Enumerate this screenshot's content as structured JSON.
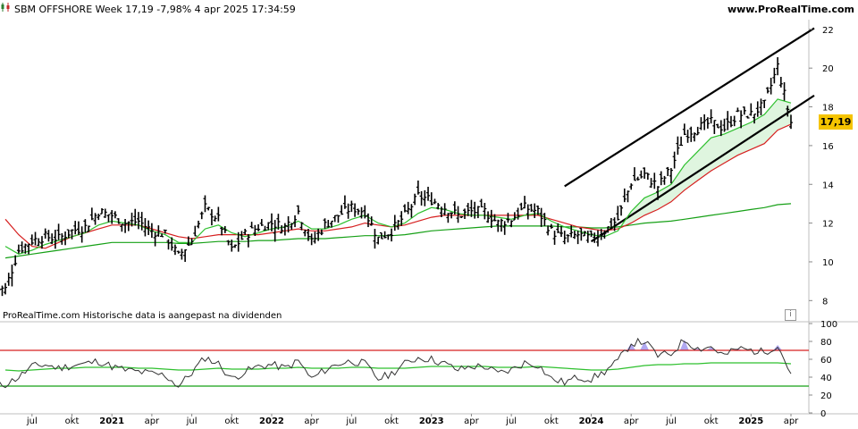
{
  "header": {
    "title": "SBM OFFSHORE Week 17,19 -7,98% 4 apr 2025 17:34:59",
    "site": "www.ProRealTime.com"
  },
  "footnote": "ProRealTime.com  Historische data is aangepast na dividenden",
  "info_icon": "i",
  "price_tag": "17,19",
  "colors": {
    "bars": "#000000",
    "ma_short": "#2ec02e",
    "ma_mid": "#d62020",
    "ma_long": "#16a016",
    "channel_fill": "#dff5df",
    "price_tag": "#f5c400",
    "rsi_line": "#333333",
    "rsi_ma": "#2ec02e",
    "rsi_upper": "#d62020",
    "rsi_lower": "#16a016",
    "rsi_overbought_fill": "#b0a8f0"
  },
  "chart_data": [
    {
      "type": "bar",
      "title": "SBM OFFSHORE Week 17,19 -7,98% 4 apr 2025 17:34:59",
      "ylim": [
        7,
        22.5
      ],
      "yticks": [
        8,
        10,
        12,
        14,
        16,
        18,
        20,
        22
      ],
      "x_labels": [
        "jul",
        "okt",
        "2021",
        "apr",
        "jul",
        "okt",
        "2022",
        "apr",
        "jul",
        "okt",
        "2023",
        "apr",
        "jul",
        "okt",
        "2024",
        "apr",
        "jul",
        "okt",
        "2025",
        "apr"
      ],
      "x_label_years": [
        "2021",
        "2022",
        "2023",
        "2024",
        "2025"
      ],
      "x_range": [
        "2020-06",
        "2025-04"
      ],
      "last_close": 17.19,
      "last_change_pct": -7.98,
      "series": [
        {
          "kind": "ohlc",
          "x": [
            "2020-05",
            "2020-06",
            "2020-07",
            "2020-08",
            "2020-09",
            "2020-10",
            "2020-11",
            "2020-12",
            "2021-01",
            "2021-02",
            "2021-03",
            "2021-04",
            "2021-05",
            "2021-06",
            "2021-07",
            "2021-08",
            "2021-09",
            "2021-10",
            "2021-11",
            "2021-12",
            "2022-01",
            "2022-02",
            "2022-03",
            "2022-04",
            "2022-05",
            "2022-06",
            "2022-07",
            "2022-08",
            "2022-09",
            "2022-10",
            "2022-11",
            "2022-12",
            "2023-01",
            "2023-02",
            "2023-03",
            "2023-04",
            "2023-05",
            "2023-06",
            "2023-07",
            "2023-08",
            "2023-09",
            "2023-10",
            "2023-11",
            "2023-12",
            "2024-01",
            "2024-02",
            "2024-03",
            "2024-04",
            "2024-05",
            "2024-06",
            "2024-07",
            "2024-08",
            "2024-09",
            "2024-10",
            "2024-11",
            "2024-12",
            "2025-01",
            "2025-02",
            "2025-03",
            "2025-04"
          ],
          "close": [
            8.6,
            10.6,
            11.1,
            11.3,
            11.2,
            11.6,
            11.8,
            12.6,
            12.4,
            12.0,
            12.1,
            11.6,
            11.4,
            10.3,
            11.1,
            12.8,
            12.2,
            10.6,
            11.4,
            11.8,
            12.0,
            11.8,
            12.6,
            11.0,
            11.9,
            12.4,
            12.8,
            12.6,
            11.2,
            11.6,
            12.4,
            13.4,
            13.2,
            12.8,
            12.4,
            12.6,
            12.6,
            12.0,
            12.2,
            12.8,
            12.6,
            11.6,
            11.2,
            11.4,
            11.2,
            11.6,
            12.2,
            14.1,
            14.5,
            13.9,
            14.8,
            16.6,
            16.9,
            17.2,
            16.9,
            17.6,
            17.6,
            18.1,
            20.1,
            17.19
          ]
        },
        {
          "kind": "moving_average",
          "name": "ma_short",
          "values": [
            10.8,
            10.4,
            10.6,
            10.9,
            11.1,
            11.3,
            11.5,
            11.9,
            12.1,
            12.0,
            11.9,
            11.6,
            11.4,
            11.0,
            11.0,
            11.7,
            11.9,
            11.5,
            11.3,
            11.5,
            11.7,
            11.8,
            12.1,
            11.7,
            11.7,
            11.9,
            12.2,
            12.4,
            12.0,
            11.8,
            12.0,
            12.5,
            12.8,
            12.7,
            12.5,
            12.4,
            12.4,
            12.3,
            12.2,
            12.4,
            12.5,
            12.1,
            11.8,
            11.6,
            11.4,
            11.3,
            11.6,
            12.6,
            13.3,
            13.6,
            14.0,
            15.0,
            15.7,
            16.4,
            16.6,
            16.9,
            17.2,
            17.6,
            18.4,
            18.2
          ]
        },
        {
          "kind": "moving_average",
          "name": "ma_mid",
          "values": [
            12.2,
            11.4,
            10.8,
            10.7,
            11.0,
            11.3,
            11.5,
            11.7,
            11.9,
            11.9,
            11.9,
            11.7,
            11.5,
            11.3,
            11.2,
            11.3,
            11.4,
            11.4,
            11.4,
            11.4,
            11.5,
            11.6,
            11.7,
            11.6,
            11.6,
            11.7,
            11.8,
            12.0,
            11.9,
            11.8,
            11.9,
            12.1,
            12.3,
            12.4,
            12.4,
            12.4,
            12.4,
            12.4,
            12.4,
            12.4,
            12.4,
            12.2,
            12.0,
            11.8,
            11.7,
            11.6,
            11.7,
            12.0,
            12.4,
            12.7,
            13.1,
            13.7,
            14.2,
            14.7,
            15.1,
            15.5,
            15.8,
            16.1,
            16.8,
            17.1
          ]
        },
        {
          "kind": "moving_average",
          "name": "ma_long",
          "values": [
            10.2,
            10.3,
            10.4,
            10.5,
            10.6,
            10.7,
            10.8,
            10.9,
            11.0,
            11.0,
            11.0,
            11.0,
            11.0,
            10.95,
            10.95,
            11.0,
            11.05,
            11.05,
            11.05,
            11.1,
            11.1,
            11.15,
            11.2,
            11.2,
            11.2,
            11.25,
            11.3,
            11.35,
            11.35,
            11.35,
            11.4,
            11.5,
            11.6,
            11.65,
            11.7,
            11.75,
            11.8,
            11.85,
            11.85,
            11.85,
            11.85,
            11.85,
            11.8,
            11.8,
            11.75,
            11.75,
            11.8,
            11.9,
            12.0,
            12.05,
            12.1,
            12.2,
            12.3,
            12.4,
            12.5,
            12.6,
            12.7,
            12.8,
            12.95,
            13.0
          ]
        },
        {
          "kind": "trend_channel",
          "lines": [
            {
              "x": [
                "2024-01",
                "2025-04"
              ],
              "y": [
                11.05,
                17.8
              ]
            },
            {
              "x": [
                "2023-11",
                "2025-04"
              ],
              "y": [
                13.9,
                21.3
              ]
            }
          ]
        }
      ]
    },
    {
      "type": "line",
      "title": "",
      "ylim": [
        0,
        100
      ],
      "yticks": [
        0,
        20,
        40,
        60,
        80,
        100
      ],
      "levels": [
        70,
        50,
        30
      ],
      "series": [
        {
          "name": "rsi",
          "values": [
            32,
            40,
            52,
            54,
            50,
            53,
            55,
            58,
            52,
            48,
            46,
            44,
            42,
            30,
            45,
            62,
            55,
            38,
            46,
            52,
            54,
            50,
            58,
            38,
            48,
            55,
            58,
            55,
            38,
            44,
            55,
            62,
            60,
            55,
            48,
            52,
            52,
            44,
            48,
            56,
            54,
            38,
            34,
            40,
            38,
            46,
            58,
            78,
            80,
            64,
            66,
            82,
            72,
            74,
            64,
            72,
            70,
            68,
            76,
            44
          ]
        },
        {
          "name": "rsi_ma",
          "values": [
            48,
            47,
            48,
            49,
            50,
            50,
            51,
            51,
            51,
            51,
            50,
            50,
            49,
            48,
            48,
            49,
            50,
            49,
            49,
            49,
            50,
            50,
            51,
            50,
            50,
            50,
            51,
            51,
            50,
            50,
            50,
            51,
            52,
            52,
            52,
            52,
            52,
            51,
            51,
            51,
            52,
            51,
            50,
            49,
            48,
            48,
            49,
            51,
            53,
            54,
            54,
            55,
            55,
            56,
            56,
            56,
            56,
            56,
            56,
            55
          ]
        }
      ]
    }
  ]
}
